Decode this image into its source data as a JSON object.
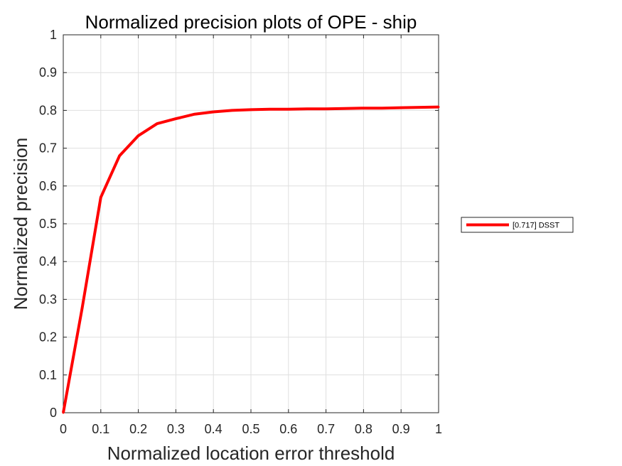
{
  "chart_data": {
    "type": "line",
    "title": "Normalized precision plots of OPE - ship",
    "xlabel": "Normalized location error threshold",
    "ylabel": "Normalized precision",
    "xlim": [
      0,
      1
    ],
    "ylim": [
      0,
      1
    ],
    "xticks": [
      "0",
      "0.1",
      "0.2",
      "0.3",
      "0.4",
      "0.5",
      "0.6",
      "0.7",
      "0.8",
      "0.9",
      "1"
    ],
    "yticks": [
      "0",
      "0.1",
      "0.2",
      "0.3",
      "0.4",
      "0.5",
      "0.6",
      "0.7",
      "0.8",
      "0.9",
      "1"
    ],
    "grid": true,
    "legend_position": "outside-right",
    "series": [
      {
        "name": "[0.717] DSST",
        "color": "#ff0000",
        "x": [
          0,
          0.05,
          0.1,
          0.15,
          0.2,
          0.25,
          0.3,
          0.35,
          0.4,
          0.45,
          0.5,
          0.55,
          0.6,
          0.65,
          0.7,
          0.75,
          0.8,
          0.85,
          0.9,
          0.95,
          1.0
        ],
        "y": [
          0,
          0.275,
          0.57,
          0.68,
          0.733,
          0.765,
          0.778,
          0.79,
          0.796,
          0.8,
          0.802,
          0.803,
          0.803,
          0.804,
          0.804,
          0.805,
          0.806,
          0.806,
          0.807,
          0.808,
          0.809
        ]
      }
    ]
  }
}
